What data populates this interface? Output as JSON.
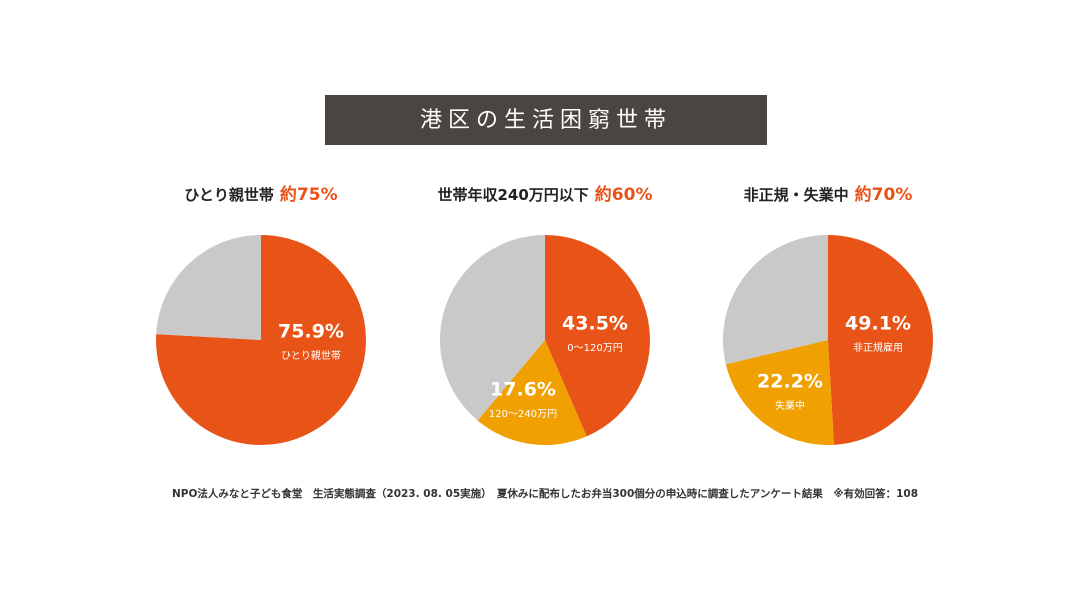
{
  "title": "港区の生活困窮世帯",
  "source": "NPO法人みなと子ども食堂　生活実態調査（2023. 08. 05実施）　夏休みに配布したお弁当300個分の申込時に調査したアンケート結果　※有効回答：108",
  "chart_data": [
    {
      "type": "pie",
      "title": "ひとり親世帯",
      "highlight": "約75%",
      "categories": [
        "ひとり親世帯",
        null
      ],
      "values": [
        75.9,
        24.1
      ],
      "value_labels": [
        "75.9%",
        null
      ],
      "colors": [
        "#e85418",
        "#c9c9c9"
      ]
    },
    {
      "type": "pie",
      "title": "世帯年収240万円以下",
      "highlight": "約60%",
      "categories": [
        "0〜120万円",
        "120〜240万円",
        null
      ],
      "values": [
        43.5,
        17.6,
        38.9
      ],
      "value_labels": [
        "43.5%",
        "17.6%",
        null
      ],
      "colors": [
        "#e85418",
        "#f0a000",
        "#c9c9c9"
      ]
    },
    {
      "type": "pie",
      "title": "非正規・失業中",
      "highlight": "約70%",
      "categories": [
        "非正規雇用",
        "失業中",
        null
      ],
      "values": [
        49.1,
        22.2,
        28.7
      ],
      "value_labels": [
        "49.1%",
        "22.2%",
        null
      ],
      "colors": [
        "#e85418",
        "#f0a000",
        "#c9c9c9"
      ]
    }
  ]
}
